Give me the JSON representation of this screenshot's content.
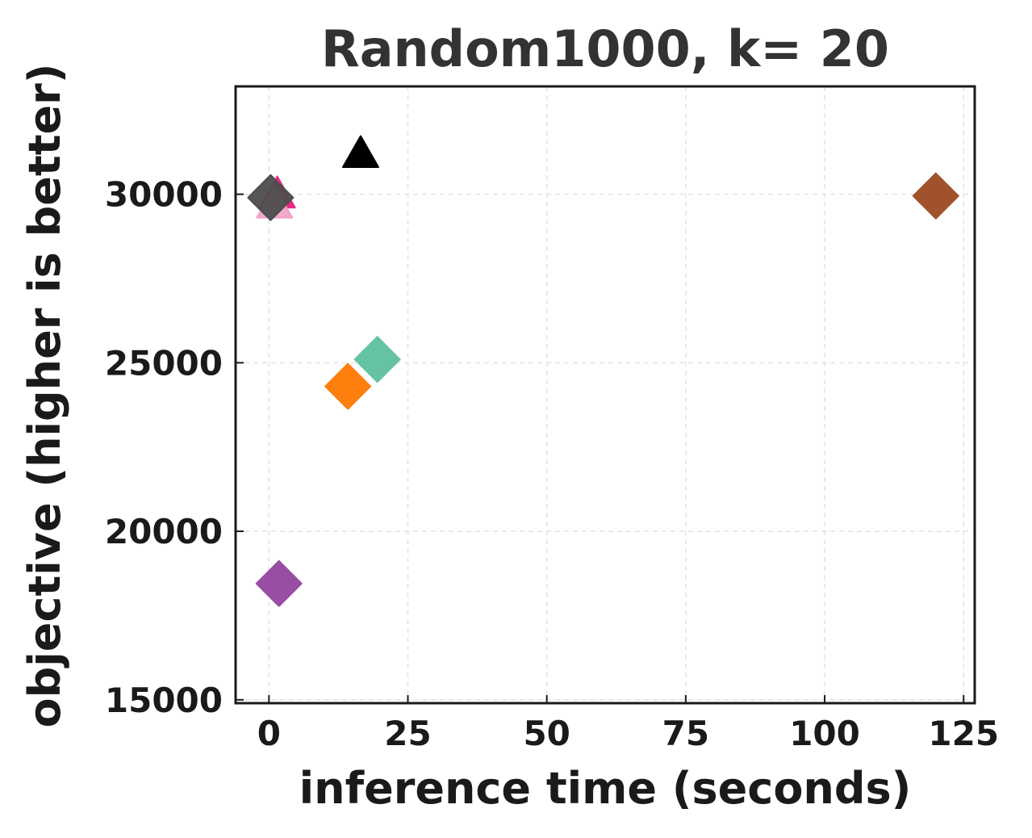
{
  "chart_data": {
    "type": "scatter",
    "title": "Random1000, k= 20",
    "xlabel": "inference time (seconds)",
    "ylabel": "objective (higher is better)",
    "xlim": [
      -6,
      127
    ],
    "ylim": [
      14900,
      33200
    ],
    "xticks": [
      0,
      25,
      50,
      75,
      100,
      125
    ],
    "yticks": [
      15000,
      20000,
      25000,
      30000
    ],
    "grid": true,
    "legend": "none",
    "points": [
      {
        "x": 1.5,
        "y": 30000,
        "marker": "triangle",
        "color": "#e7298a",
        "opacity": 1.0
      },
      {
        "x": 1.0,
        "y": 29700,
        "marker": "triangle",
        "color": "#f0a0c8",
        "opacity": 0.9
      },
      {
        "x": 0.3,
        "y": 29900,
        "marker": "diamond",
        "color": "#4d4d4d",
        "opacity": 0.95
      },
      {
        "x": 16.5,
        "y": 31200,
        "marker": "triangle",
        "color": "#000000",
        "opacity": 1.0
      },
      {
        "x": 120,
        "y": 29950,
        "marker": "diamond",
        "color": "#a0522d",
        "opacity": 1.0
      },
      {
        "x": 19.5,
        "y": 25100,
        "marker": "diamond",
        "color": "#66c2a5",
        "opacity": 1.0
      },
      {
        "x": 14.2,
        "y": 24300,
        "marker": "diamond",
        "color": "#ff7f0e",
        "opacity": 1.0
      },
      {
        "x": 1.8,
        "y": 18450,
        "marker": "diamond",
        "color": "#984ea3",
        "opacity": 1.0
      }
    ]
  }
}
